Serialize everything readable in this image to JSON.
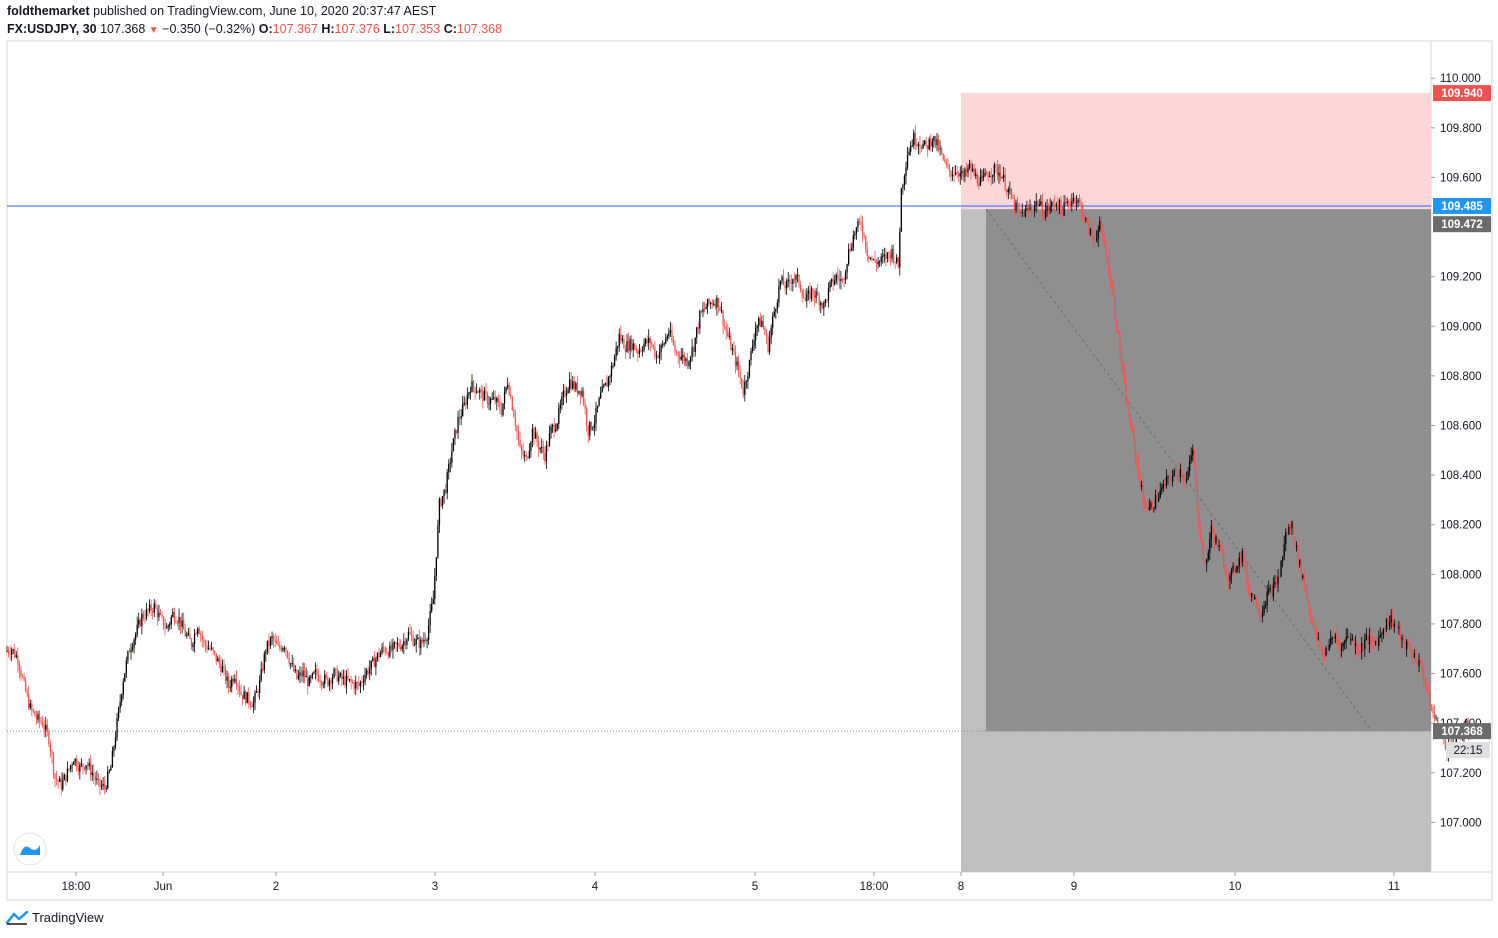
{
  "header": {
    "author": "foldthemarket",
    "published_text": "published on TradingView.com, June 10, 2020 20:37:47 AEST",
    "symbol": "FX:USDJPY, 30",
    "last": "107.368",
    "change": "−0.350 (−0.32%)",
    "o_label": "O:",
    "o_value": "107.367",
    "h_label": "H:",
    "h_value": "107.376",
    "l_label": "L:",
    "l_value": "107.353",
    "c_label": "C:",
    "c_value": "107.368"
  },
  "footer": {
    "brand": "TradingView"
  },
  "colors": {
    "up": "#000000",
    "down": "#ef5350",
    "stop_zone": "#fcd7d5",
    "target_zone": "#8f8f8f",
    "outer_zone": "#bfbfbf",
    "horizontal_line": "#2962ff",
    "tag_red": "#ef5350",
    "tag_blue": "#2196f3",
    "tag_gray": "#6b6b6b"
  },
  "chart_data": {
    "type": "candlestick",
    "symbol": "FX:USDJPY",
    "timeframe": "30",
    "ylim": [
      106.8,
      110.15
    ],
    "y_ticks": [
      "110.000",
      "109.800",
      "109.600",
      "109.200",
      "109.000",
      "108.800",
      "108.600",
      "108.400",
      "108.200",
      "108.000",
      "107.800",
      "107.600",
      "107.400",
      "107.200",
      "107.000"
    ],
    "x_ticks": [
      "18:00",
      "Jun",
      "2",
      "3",
      "4",
      "5",
      "18:00",
      "8",
      "9",
      "10",
      "11"
    ],
    "price_tags": [
      {
        "text": "109.940",
        "value": 109.94,
        "style": "red"
      },
      {
        "text": "109.485",
        "value": 109.485,
        "style": "blue"
      },
      {
        "text": "109.472",
        "value": 109.472,
        "style": "gray"
      },
      {
        "text": "107.368",
        "value": 107.368,
        "style": "gray"
      }
    ],
    "countdown": "22:15",
    "horizontal_line": 109.485,
    "last_price": 107.368,
    "short_position": {
      "entry": 109.472,
      "stop": 109.94,
      "target": 107.368
    },
    "price_path": [
      [
        0,
        107.69
      ],
      [
        4,
        107.7
      ],
      [
        8,
        107.66
      ],
      [
        12,
        107.55
      ],
      [
        16,
        107.46
      ],
      [
        20,
        107.42
      ],
      [
        24,
        107.4
      ],
      [
        28,
        107.34
      ],
      [
        32,
        107.18
      ],
      [
        36,
        107.15
      ],
      [
        40,
        107.2
      ],
      [
        44,
        107.26
      ],
      [
        48,
        107.22
      ],
      [
        52,
        107.24
      ],
      [
        56,
        107.2
      ],
      [
        60,
        107.15
      ],
      [
        64,
        107.14
      ],
      [
        68,
        107.22
      ],
      [
        72,
        107.4
      ],
      [
        76,
        107.58
      ],
      [
        80,
        107.7
      ],
      [
        84,
        107.76
      ],
      [
        88,
        107.83
      ],
      [
        92,
        107.85
      ],
      [
        96,
        107.87
      ],
      [
        100,
        107.82
      ],
      [
        104,
        107.78
      ],
      [
        108,
        107.84
      ],
      [
        112,
        107.82
      ],
      [
        116,
        107.76
      ],
      [
        120,
        107.72
      ],
      [
        124,
        107.8
      ],
      [
        128,
        107.72
      ],
      [
        132,
        107.7
      ],
      [
        136,
        107.66
      ],
      [
        140,
        107.62
      ],
      [
        144,
        107.55
      ],
      [
        148,
        107.6
      ],
      [
        152,
        107.52
      ],
      [
        156,
        107.5
      ],
      [
        160,
        107.48
      ],
      [
        164,
        107.56
      ],
      [
        168,
        107.7
      ],
      [
        172,
        107.74
      ],
      [
        176,
        107.7
      ],
      [
        180,
        107.72
      ],
      [
        184,
        107.64
      ],
      [
        188,
        107.58
      ],
      [
        192,
        107.6
      ],
      [
        196,
        107.56
      ],
      [
        200,
        107.6
      ],
      [
        204,
        107.58
      ],
      [
        208,
        107.57
      ],
      [
        212,
        107.6
      ],
      [
        216,
        107.58
      ],
      [
        220,
        107.57
      ],
      [
        224,
        107.56
      ],
      [
        228,
        107.55
      ],
      [
        232,
        107.6
      ],
      [
        236,
        107.63
      ],
      [
        240,
        107.67
      ],
      [
        244,
        107.7
      ],
      [
        248,
        107.69
      ],
      [
        252,
        107.71
      ],
      [
        256,
        107.72
      ],
      [
        260,
        107.76
      ],
      [
        264,
        107.73
      ],
      [
        268,
        107.72
      ],
      [
        272,
        107.76
      ],
      [
        276,
        107.9
      ],
      [
        280,
        108.28
      ],
      [
        284,
        108.35
      ],
      [
        288,
        108.5
      ],
      [
        292,
        108.62
      ],
      [
        296,
        108.68
      ],
      [
        300,
        108.76
      ],
      [
        304,
        108.75
      ],
      [
        308,
        108.72
      ],
      [
        312,
        108.7
      ],
      [
        316,
        108.7
      ],
      [
        320,
        108.66
      ],
      [
        324,
        108.78
      ],
      [
        328,
        108.65
      ],
      [
        332,
        108.5
      ],
      [
        336,
        108.46
      ],
      [
        340,
        108.58
      ],
      [
        344,
        108.52
      ],
      [
        348,
        108.48
      ],
      [
        352,
        108.58
      ],
      [
        356,
        108.62
      ],
      [
        360,
        108.72
      ],
      [
        364,
        108.78
      ],
      [
        368,
        108.75
      ],
      [
        372,
        108.74
      ],
      [
        376,
        108.58
      ],
      [
        380,
        108.62
      ],
      [
        384,
        108.72
      ],
      [
        388,
        108.77
      ],
      [
        392,
        108.85
      ],
      [
        396,
        108.96
      ],
      [
        400,
        108.92
      ],
      [
        404,
        108.93
      ],
      [
        408,
        108.9
      ],
      [
        412,
        108.93
      ],
      [
        416,
        108.94
      ],
      [
        420,
        108.88
      ],
      [
        424,
        108.92
      ],
      [
        428,
        108.98
      ],
      [
        432,
        108.9
      ],
      [
        436,
        108.88
      ],
      [
        440,
        108.86
      ],
      [
        444,
        108.92
      ],
      [
        448,
        109.04
      ],
      [
        452,
        109.08
      ],
      [
        456,
        109.1
      ],
      [
        460,
        109.1
      ],
      [
        464,
        109.0
      ],
      [
        468,
        108.92
      ],
      [
        472,
        108.84
      ],
      [
        476,
        108.74
      ],
      [
        480,
        108.85
      ],
      [
        484,
        109.0
      ],
      [
        488,
        109.02
      ],
      [
        492,
        108.92
      ],
      [
        496,
        109.06
      ],
      [
        500,
        109.18
      ],
      [
        504,
        109.16
      ],
      [
        508,
        109.2
      ],
      [
        512,
        109.18
      ],
      [
        516,
        109.1
      ],
      [
        520,
        109.14
      ],
      [
        524,
        109.12
      ],
      [
        528,
        109.08
      ],
      [
        532,
        109.16
      ],
      [
        536,
        109.2
      ],
      [
        540,
        109.18
      ],
      [
        544,
        109.3
      ],
      [
        548,
        109.38
      ],
      [
        552,
        109.42
      ],
      [
        556,
        109.3
      ],
      [
        560,
        109.26
      ],
      [
        564,
        109.26
      ],
      [
        568,
        109.28
      ],
      [
        572,
        109.3
      ],
      [
        576,
        109.24
      ],
      [
        578,
        109.55
      ],
      [
        582,
        109.7
      ],
      [
        586,
        109.76
      ],
      [
        590,
        109.74
      ],
      [
        594,
        109.72
      ],
      [
        598,
        109.76
      ],
      [
        602,
        109.72
      ],
      [
        606,
        109.65
      ],
      [
        610,
        109.62
      ],
      [
        614,
        109.63
      ],
      [
        618,
        109.6
      ],
      [
        622,
        109.64
      ],
      [
        626,
        109.6
      ],
      [
        630,
        109.58
      ],
      [
        634,
        109.62
      ],
      [
        638,
        109.63
      ],
      [
        642,
        109.62
      ],
      [
        646,
        109.56
      ],
      [
        650,
        109.5
      ],
      [
        654,
        109.45
      ],
      [
        658,
        109.46
      ],
      [
        662,
        109.48
      ],
      [
        666,
        109.5
      ],
      [
        670,
        109.46
      ],
      [
        674,
        109.48
      ],
      [
        678,
        109.5
      ],
      [
        682,
        109.47
      ],
      [
        686,
        109.5
      ],
      [
        690,
        109.52
      ],
      [
        694,
        109.48
      ],
      [
        698,
        109.4
      ],
      [
        702,
        109.35
      ],
      [
        706,
        109.4
      ],
      [
        710,
        109.3
      ],
      [
        714,
        109.15
      ],
      [
        718,
        108.95
      ],
      [
        722,
        108.75
      ],
      [
        726,
        108.6
      ],
      [
        730,
        108.45
      ],
      [
        734,
        108.3
      ],
      [
        738,
        108.26
      ],
      [
        742,
        108.3
      ],
      [
        746,
        108.34
      ],
      [
        750,
        108.38
      ],
      [
        754,
        108.4
      ],
      [
        758,
        108.42
      ],
      [
        762,
        108.38
      ],
      [
        766,
        108.5
      ],
      [
        770,
        108.2
      ],
      [
        774,
        108.02
      ],
      [
        778,
        108.18
      ],
      [
        782,
        108.12
      ],
      [
        786,
        108.05
      ],
      [
        790,
        107.98
      ],
      [
        794,
        108.04
      ],
      [
        798,
        108.08
      ],
      [
        802,
        107.94
      ],
      [
        806,
        107.9
      ],
      [
        810,
        107.84
      ],
      [
        814,
        107.92
      ],
      [
        818,
        107.94
      ],
      [
        822,
        108.0
      ],
      [
        826,
        108.16
      ],
      [
        830,
        108.2
      ],
      [
        834,
        108.06
      ],
      [
        838,
        107.96
      ],
      [
        842,
        107.84
      ],
      [
        846,
        107.74
      ],
      [
        850,
        107.68
      ],
      [
        854,
        107.72
      ],
      [
        858,
        107.75
      ],
      [
        862,
        107.7
      ],
      [
        866,
        107.76
      ],
      [
        870,
        107.72
      ],
      [
        874,
        107.7
      ],
      [
        878,
        107.74
      ],
      [
        882,
        107.72
      ],
      [
        886,
        107.74
      ],
      [
        890,
        107.8
      ],
      [
        894,
        107.82
      ],
      [
        898,
        107.78
      ],
      [
        902,
        107.72
      ],
      [
        906,
        107.7
      ],
      [
        910,
        107.66
      ],
      [
        914,
        107.62
      ],
      [
        918,
        107.5
      ],
      [
        922,
        107.42
      ],
      [
        926,
        107.36
      ],
      [
        930,
        107.3
      ],
      [
        934,
        107.32
      ],
      [
        938,
        107.35
      ],
      [
        942,
        107.37
      ],
      [
        944,
        107.368
      ]
    ]
  }
}
